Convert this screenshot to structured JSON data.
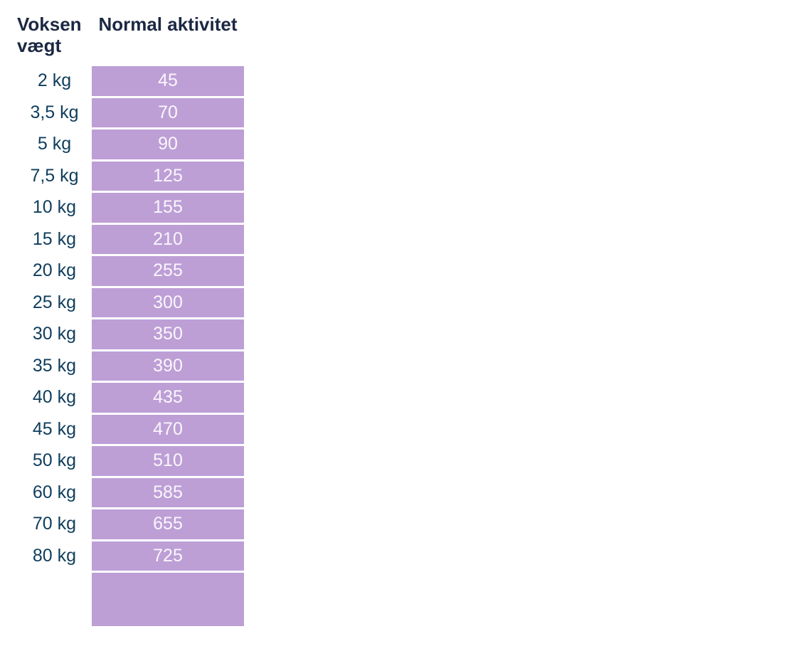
{
  "chart_data": {
    "type": "table",
    "columns": [
      "Voksen vægt",
      "Normal aktivitet"
    ],
    "rows": [
      {
        "weight": "2 kg",
        "value": "45"
      },
      {
        "weight": "3,5 kg",
        "value": "70"
      },
      {
        "weight": "5 kg",
        "value": "90"
      },
      {
        "weight": "7,5 kg",
        "value": "125"
      },
      {
        "weight": "10 kg",
        "value": "155"
      },
      {
        "weight": "15 kg",
        "value": "210"
      },
      {
        "weight": "20 kg",
        "value": "255"
      },
      {
        "weight": "25 kg",
        "value": "300"
      },
      {
        "weight": "30 kg",
        "value": "350"
      },
      {
        "weight": "35 kg",
        "value": "390"
      },
      {
        "weight": "40 kg",
        "value": "435"
      },
      {
        "weight": "45 kg",
        "value": "470"
      },
      {
        "weight": "50 kg",
        "value": "510"
      },
      {
        "weight": "60 kg",
        "value": "585"
      },
      {
        "weight": "70 kg",
        "value": "655"
      },
      {
        "weight": "80 kg",
        "value": "725"
      }
    ],
    "has_empty_footer_cell": true,
    "legend_position": "none",
    "grid": false
  },
  "colors": {
    "cell_fill": "#BD9FD6",
    "header_text": "#1B2843",
    "weight_text": "#0F3D5C",
    "value_text": "#FAF6FC",
    "background": "#FFFFFF"
  }
}
